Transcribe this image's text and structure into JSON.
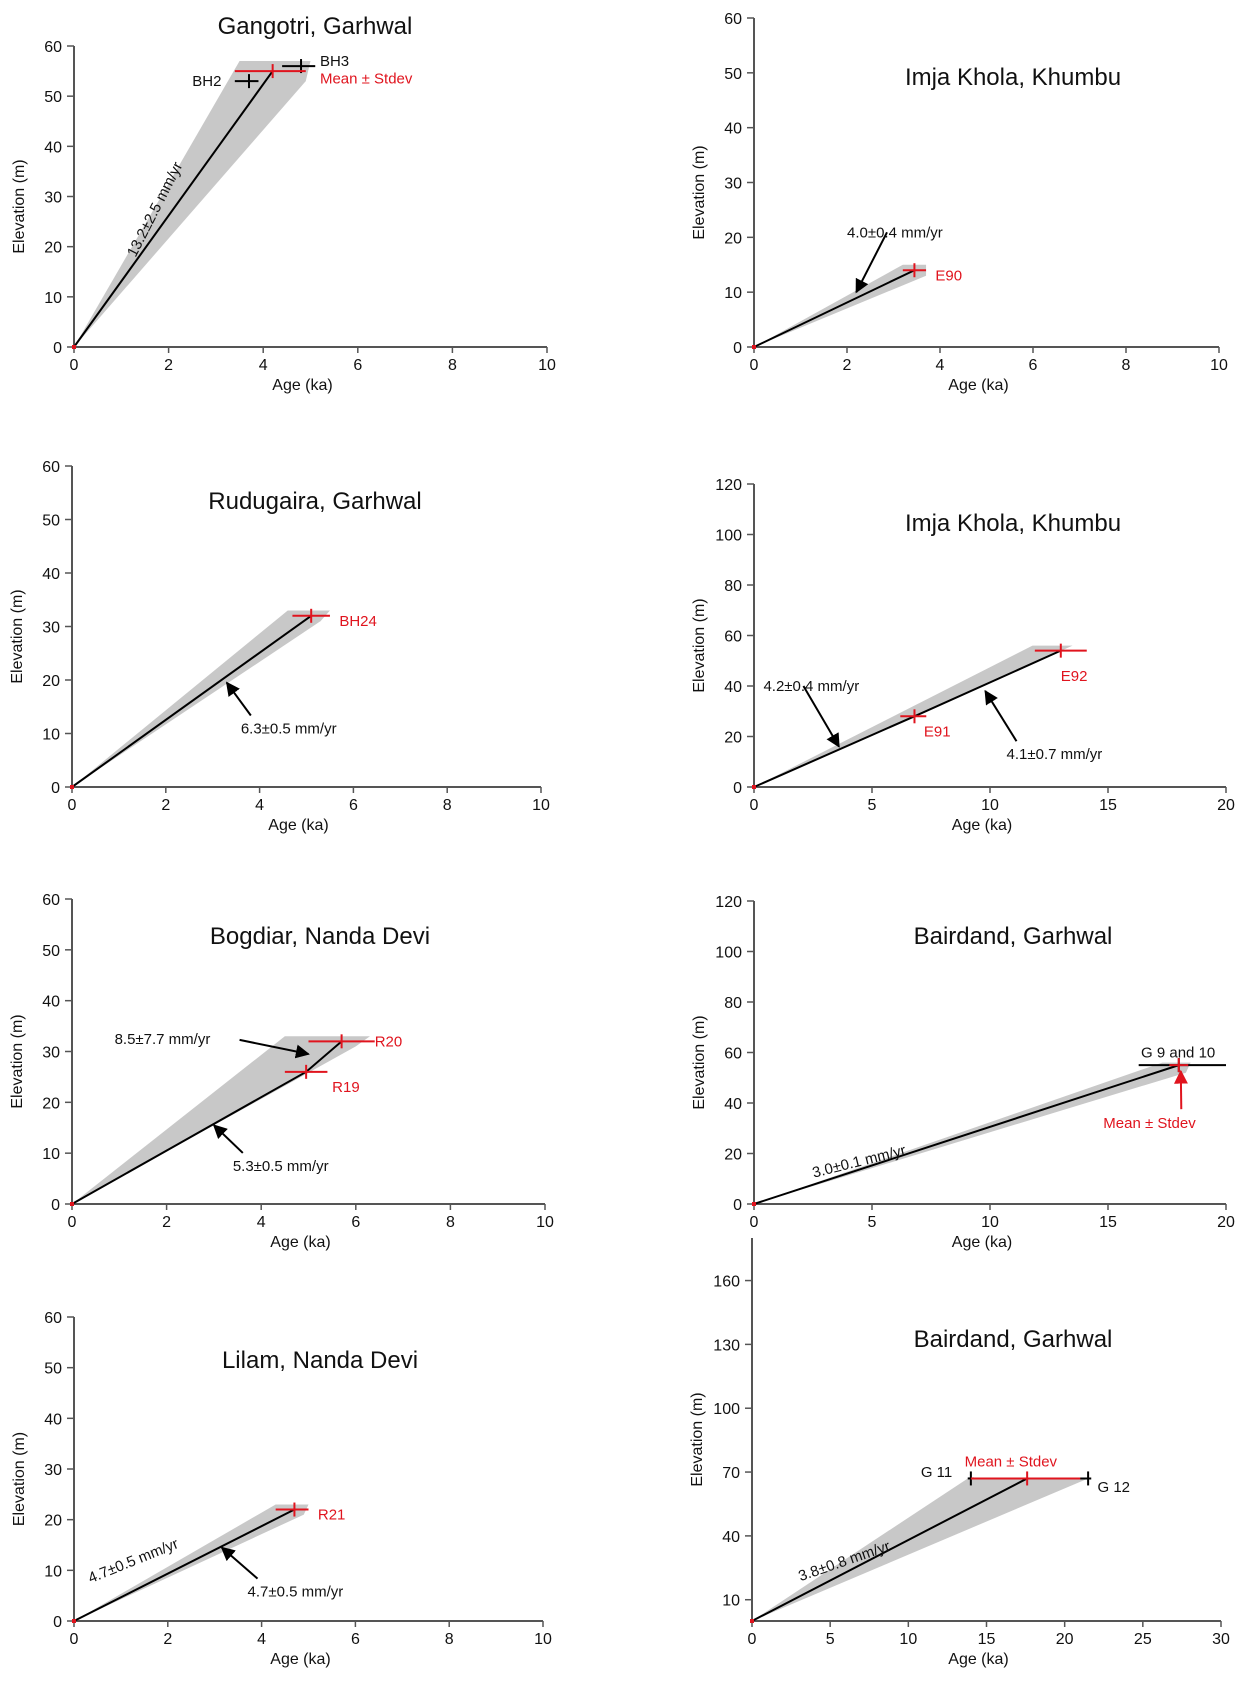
{
  "colors": {
    "axis": "#555555",
    "band": "#c8c8c8",
    "line": "#000000",
    "red": "#e0141e",
    "text": "#111111"
  },
  "chart_data": [
    {
      "type": "scatter",
      "title": "Gangotri, Garhwal",
      "xlabel": "Age (ka)",
      "ylabel": "Elevation (m)",
      "xlim": [
        0,
        10
      ],
      "ylim": [
        0,
        60
      ],
      "xticks": [
        0,
        2,
        4,
        6,
        8,
        10
      ],
      "yticks": [
        0,
        10,
        20,
        30,
        40,
        50,
        60
      ],
      "band": [
        [
          0,
          0
        ],
        [
          3.5,
          57
        ],
        [
          5.0,
          57
        ],
        [
          4.9,
          53
        ],
        [
          0,
          0
        ]
      ],
      "lines": [
        {
          "x": [
            0,
            4.2
          ],
          "y": [
            0,
            55
          ]
        }
      ],
      "samples": [
        {
          "name": "BH2",
          "x": 3.7,
          "xerr": [
            3.4,
            3.9
          ],
          "y": 53,
          "color": "black",
          "label_pos": [
            2.5,
            53
          ]
        },
        {
          "name": "BH3",
          "x": 4.8,
          "xerr": [
            4.4,
            5.1
          ],
          "y": 56,
          "color": "black",
          "label_pos": [
            5.2,
            57
          ]
        },
        {
          "name": "Mean ± Stdev",
          "x": 4.2,
          "xerr": [
            3.4,
            4.9
          ],
          "y": 55,
          "color": "red",
          "label_pos": [
            5.2,
            53.5
          ]
        }
      ],
      "annotations": [
        {
          "text": "13.2±2.5 mm/yr",
          "x": 1.8,
          "y": 27,
          "rotate": -63,
          "arrow": null
        }
      ]
    },
    {
      "type": "scatter",
      "title": "Imja Khola, Khumbu",
      "xlabel": "Age (ka)",
      "ylabel": "Elevation (m)",
      "xlim": [
        0,
        10
      ],
      "ylim": [
        0,
        60
      ],
      "xticks": [
        0,
        2,
        4,
        6,
        8,
        10
      ],
      "yticks": [
        0,
        10,
        20,
        30,
        40,
        50,
        60
      ],
      "band": [
        [
          0,
          0
        ],
        [
          3.2,
          15
        ],
        [
          3.7,
          15
        ],
        [
          3.7,
          13
        ],
        [
          0,
          0
        ]
      ],
      "lines": [
        {
          "x": [
            0,
            3.45
          ],
          "y": [
            0,
            14
          ]
        }
      ],
      "samples": [
        {
          "name": "E90",
          "x": 3.45,
          "xerr": [
            3.2,
            3.7
          ],
          "y": 14,
          "color": "red",
          "label_pos": [
            3.9,
            13
          ]
        }
      ],
      "annotations": [
        {
          "text": "4.0±0.4 mm/yr",
          "x": 2.0,
          "y": 20,
          "rotate": 0,
          "arrow": [
            2.2,
            10
          ]
        }
      ]
    },
    {
      "type": "scatter",
      "title": "Rudugaira, Garhwal",
      "xlabel": "Age (ka)",
      "ylabel": "Elevation (m)",
      "xlim": [
        0,
        10
      ],
      "ylim": [
        0,
        60
      ],
      "xticks": [
        0,
        2,
        4,
        6,
        8,
        10
      ],
      "yticks": [
        0,
        10,
        20,
        30,
        40,
        50,
        60
      ],
      "band": [
        [
          0,
          0
        ],
        [
          4.6,
          33
        ],
        [
          5.5,
          33
        ],
        [
          5.3,
          31
        ],
        [
          0,
          0
        ]
      ],
      "lines": [
        {
          "x": [
            0,
            5.1
          ],
          "y": [
            0,
            32
          ]
        }
      ],
      "samples": [
        {
          "name": "BH24",
          "x": 5.1,
          "xerr": [
            4.7,
            5.5
          ],
          "y": 32,
          "color": "red",
          "label_pos": [
            5.7,
            31
          ]
        }
      ],
      "annotations": [
        {
          "text": "6.3±0.5 mm/yr",
          "x": 3.6,
          "y": 10,
          "rotate": 0,
          "arrow": [
            3.3,
            19.5
          ]
        }
      ]
    },
    {
      "type": "scatter",
      "title": "Imja Khola, Khumbu",
      "xlabel": "Age (ka)",
      "ylabel": "Elevation (m)",
      "xlim": [
        0,
        20
      ],
      "ylim": [
        0,
        120
      ],
      "xticks": [
        0,
        5,
        10,
        15,
        20
      ],
      "yticks": [
        0,
        20,
        40,
        60,
        80,
        100,
        120
      ],
      "band": [
        [
          0,
          0
        ],
        [
          11.8,
          56
        ],
        [
          13.5,
          56
        ],
        [
          0,
          0
        ]
      ],
      "lines": [
        {
          "x": [
            0,
            6.8,
            13.0
          ],
          "y": [
            0,
            28,
            54
          ]
        }
      ],
      "samples": [
        {
          "name": "E91",
          "x": 6.8,
          "xerr": [
            6.2,
            7.3
          ],
          "y": 28,
          "color": "red",
          "label_pos": [
            7.2,
            22
          ]
        },
        {
          "name": "E92",
          "x": 13.0,
          "xerr": [
            11.9,
            14.1
          ],
          "y": 54,
          "color": "red",
          "label_pos": [
            13.0,
            44
          ]
        }
      ],
      "annotations": [
        {
          "text": "4.2±0.4 mm/yr",
          "x": 0.4,
          "y": 38,
          "rotate": 0,
          "arrow": [
            3.6,
            16
          ]
        },
        {
          "text": "4.1±0.7 mm/yr",
          "x": 10.7,
          "y": 11,
          "rotate": 0,
          "arrow": [
            9.8,
            38
          ]
        }
      ]
    },
    {
      "type": "scatter",
      "title": "Bogdiar, Nanda Devi",
      "xlabel": "Age (ka)",
      "ylabel": "Elevation (m)",
      "xlim": [
        0,
        10
      ],
      "ylim": [
        0,
        60
      ],
      "xticks": [
        0,
        2,
        4,
        6,
        8,
        10
      ],
      "yticks": [
        0,
        10,
        20,
        30,
        40,
        50,
        60
      ],
      "band": [
        [
          0,
          0
        ],
        [
          4.5,
          33
        ],
        [
          6.3,
          33
        ],
        [
          6.0,
          31
        ],
        [
          0,
          0
        ]
      ],
      "lines": [
        {
          "x": [
            0,
            4.95,
            5.7
          ],
          "y": [
            0,
            26,
            32
          ]
        }
      ],
      "samples": [
        {
          "name": "R19",
          "x": 4.95,
          "xerr": [
            4.5,
            5.4
          ],
          "y": 26,
          "color": "red",
          "label_pos": [
            5.5,
            23
          ]
        },
        {
          "name": "R20",
          "x": 5.7,
          "xerr": [
            5.0,
            6.4
          ],
          "y": 32,
          "color": "red",
          "label_pos": [
            6.4,
            32
          ]
        }
      ],
      "annotations": [
        {
          "text": "8.5±7.7 mm/yr",
          "x": 0.9,
          "y": 31.5,
          "rotate": 0,
          "arrow": [
            5.0,
            29.5
          ]
        },
        {
          "text": "5.3±0.5 mm/yr",
          "x": 3.4,
          "y": 6.5,
          "rotate": 0,
          "arrow": [
            3.0,
            15.5
          ]
        }
      ]
    },
    {
      "type": "scatter",
      "title": "Bairdand, Garhwal",
      "xlabel": "Age (ka)",
      "ylabel": "Elevation (m)",
      "xlim": [
        0,
        20
      ],
      "ylim": [
        0,
        120
      ],
      "xticks": [
        0,
        5,
        10,
        15,
        20
      ],
      "yticks": [
        0,
        20,
        40,
        60,
        80,
        100,
        120
      ],
      "band": [
        [
          0,
          0
        ],
        [
          17.3,
          56
        ],
        [
          18.5,
          56
        ],
        [
          18.3,
          52
        ],
        [
          0,
          0
        ]
      ],
      "lines": [
        {
          "x": [
            0,
            18.0
          ],
          "y": [
            0,
            55
          ]
        }
      ],
      "samples": [
        {
          "name": "G 9 and 10",
          "x": 18.0,
          "xerr": [
            16.3,
            20.0
          ],
          "y": 55,
          "color": "black",
          "label_pos": [
            16.4,
            60
          ]
        },
        {
          "name": "Mean ± Stdev",
          "x": 18.0,
          "xerr": [
            17.6,
            18.4
          ],
          "y": 55,
          "color": "red",
          "label_pos": [
            14.8,
            32
          ]
        }
      ],
      "annotations": [
        {
          "text": "3.0±0.1 mm/yr",
          "x": 4.5,
          "y": 15,
          "rotate": -14,
          "arrow": null
        }
      ]
    },
    {
      "type": "scatter",
      "title": "Lilam, Nanda Devi",
      "xlabel": "Age (ka)",
      "ylabel": "Elevation (m)",
      "xlim": [
        0,
        10
      ],
      "ylim": [
        0,
        60
      ],
      "xticks": [
        0,
        2,
        4,
        6,
        8,
        10
      ],
      "yticks": [
        0,
        10,
        20,
        30,
        40,
        50,
        60
      ],
      "band": [
        [
          0,
          0
        ],
        [
          4.3,
          23
        ],
        [
          5.0,
          23
        ],
        [
          4.9,
          21
        ],
        [
          0,
          0
        ]
      ],
      "lines": [
        {
          "x": [
            0,
            4.7
          ],
          "y": [
            0,
            22
          ]
        }
      ],
      "samples": [
        {
          "name": "R21",
          "x": 4.7,
          "xerr": [
            4.3,
            5.0
          ],
          "y": 22,
          "color": "red",
          "label_pos": [
            5.2,
            21
          ]
        }
      ],
      "annotations": [
        {
          "text": "4.7±0.5 mm/yr",
          "x": 1.3,
          "y": 11,
          "rotate": -22,
          "arrow": null
        },
        {
          "text": "4.7±0.5 mm/yr",
          "x": 3.7,
          "y": 4.8,
          "rotate": 0,
          "arrow": [
            3.15,
            14.5
          ]
        }
      ]
    },
    {
      "type": "scatter",
      "title": "Bairdand, Garhwal",
      "xlabel": "Age (ka)",
      "ylabel": "Elevation (m)",
      "xlim": [
        0,
        30
      ],
      "ylim": [
        0,
        180
      ],
      "xticks": [
        0,
        5,
        10,
        15,
        20,
        25,
        30
      ],
      "yticks": [
        10,
        40,
        70,
        100,
        130,
        160
      ],
      "band": [
        [
          0,
          0
        ],
        [
          13.8,
          67
        ],
        [
          21.5,
          67
        ],
        [
          0,
          0
        ]
      ],
      "lines": [
        {
          "x": [
            0,
            17.6
          ],
          "y": [
            0,
            67
          ]
        }
      ],
      "samples": [
        {
          "name": "G 11",
          "x": 14.0,
          "xerr": [
            13.8,
            14.2
          ],
          "y": 67,
          "color": "black",
          "label_pos": [
            10.8,
            70
          ]
        },
        {
          "name": "G 12",
          "x": 21.5,
          "xerr": [
            20.6,
            21.7
          ],
          "y": 67,
          "color": "black",
          "label_pos": [
            22.1,
            63
          ]
        },
        {
          "name": "Mean ± Stdev",
          "x": 17.6,
          "xerr": [
            14.0,
            21.0
          ],
          "y": 67,
          "color": "red",
          "label_pos": [
            13.6,
            75
          ]
        }
      ],
      "annotations": [
        {
          "text": "3.8±0.8 mm/yr",
          "x": 6.0,
          "y": 26,
          "rotate": -19,
          "arrow": null
        }
      ]
    }
  ]
}
